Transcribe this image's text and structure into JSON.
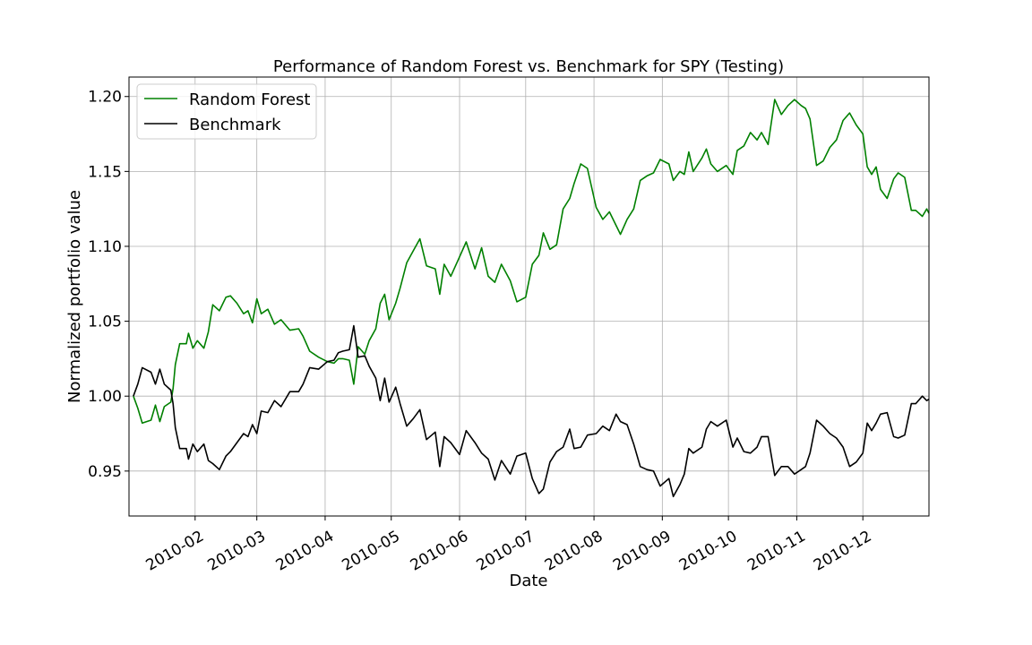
{
  "chart_data": {
    "type": "line",
    "title": "Performance of Random Forest vs. Benchmark for SPY (Testing)",
    "xlabel": "Date",
    "ylabel": "Normalized portfolio value",
    "xlim": [
      "2010-01-02",
      "2010-12-31"
    ],
    "ylim": [
      0.92,
      1.213
    ],
    "grid": true,
    "legend_position": "upper left",
    "x_ticks": [
      "2010-02-01",
      "2010-03-01",
      "2010-04-01",
      "2010-05-01",
      "2010-06-01",
      "2010-07-01",
      "2010-08-01",
      "2010-09-01",
      "2010-10-01",
      "2010-11-01",
      "2010-12-01"
    ],
    "x_tick_labels": [
      "2010-02",
      "2010-03",
      "2010-04",
      "2010-05",
      "2010-06",
      "2010-07",
      "2010-08",
      "2010-09",
      "2010-10",
      "2010-11",
      "2010-12"
    ],
    "y_ticks": [
      0.95,
      1.0,
      1.05,
      1.1,
      1.15,
      1.2
    ],
    "y_tick_labels": [
      "0.95",
      "1.00",
      "1.05",
      "1.10",
      "1.15",
      "1.20"
    ],
    "series": [
      {
        "name": "Random Forest",
        "color": "#008000",
        "points": [
          [
            "2010-01-04",
            1.0
          ],
          [
            "2010-01-06",
            0.992
          ],
          [
            "2010-01-08",
            0.982
          ],
          [
            "2010-01-12",
            0.984
          ],
          [
            "2010-01-14",
            0.994
          ],
          [
            "2010-01-16",
            0.983
          ],
          [
            "2010-01-18",
            0.993
          ],
          [
            "2010-01-21",
            0.996
          ],
          [
            "2010-01-22",
            1.005
          ],
          [
            "2010-01-23",
            1.021
          ],
          [
            "2010-01-25",
            1.035
          ],
          [
            "2010-01-28",
            1.035
          ],
          [
            "2010-01-29",
            1.042
          ],
          [
            "2010-01-31",
            1.032
          ],
          [
            "2010-02-02",
            1.037
          ],
          [
            "2010-02-05",
            1.032
          ],
          [
            "2010-02-07",
            1.043
          ],
          [
            "2010-02-09",
            1.061
          ],
          [
            "2010-02-12",
            1.057
          ],
          [
            "2010-02-15",
            1.066
          ],
          [
            "2010-02-17",
            1.067
          ],
          [
            "2010-02-20",
            1.062
          ],
          [
            "2010-02-23",
            1.055
          ],
          [
            "2010-02-25",
            1.057
          ],
          [
            "2010-02-27",
            1.049
          ],
          [
            "2010-03-01",
            1.065
          ],
          [
            "2010-03-03",
            1.055
          ],
          [
            "2010-03-06",
            1.058
          ],
          [
            "2010-03-09",
            1.048
          ],
          [
            "2010-03-12",
            1.051
          ],
          [
            "2010-03-16",
            1.044
          ],
          [
            "2010-03-20",
            1.045
          ],
          [
            "2010-03-22",
            1.04
          ],
          [
            "2010-03-25",
            1.03
          ],
          [
            "2010-03-29",
            1.026
          ],
          [
            "2010-04-02",
            1.023
          ],
          [
            "2010-04-05",
            1.022
          ],
          [
            "2010-04-07",
            1.025
          ],
          [
            "2010-04-09",
            1.025
          ],
          [
            "2010-04-12",
            1.024
          ],
          [
            "2010-04-14",
            1.008
          ],
          [
            "2010-04-16",
            1.033
          ],
          [
            "2010-04-19",
            1.028
          ],
          [
            "2010-04-21",
            1.037
          ],
          [
            "2010-04-24",
            1.045
          ],
          [
            "2010-04-26",
            1.062
          ],
          [
            "2010-04-28",
            1.068
          ],
          [
            "2010-04-30",
            1.051
          ],
          [
            "2010-05-03",
            1.062
          ],
          [
            "2010-05-05",
            1.072
          ],
          [
            "2010-05-08",
            1.089
          ],
          [
            "2010-05-11",
            1.097
          ],
          [
            "2010-05-14",
            1.105
          ],
          [
            "2010-05-17",
            1.087
          ],
          [
            "2010-05-21",
            1.085
          ],
          [
            "2010-05-23",
            1.068
          ],
          [
            "2010-05-25",
            1.088
          ],
          [
            "2010-05-28",
            1.08
          ],
          [
            "2010-06-01",
            1.093
          ],
          [
            "2010-06-04",
            1.103
          ],
          [
            "2010-06-08",
            1.085
          ],
          [
            "2010-06-11",
            1.099
          ],
          [
            "2010-06-14",
            1.08
          ],
          [
            "2010-06-17",
            1.076
          ],
          [
            "2010-06-20",
            1.088
          ],
          [
            "2010-06-24",
            1.077
          ],
          [
            "2010-06-27",
            1.063
          ],
          [
            "2010-07-01",
            1.066
          ],
          [
            "2010-07-04",
            1.088
          ],
          [
            "2010-07-07",
            1.094
          ],
          [
            "2010-07-09",
            1.109
          ],
          [
            "2010-07-12",
            1.098
          ],
          [
            "2010-07-15",
            1.101
          ],
          [
            "2010-07-18",
            1.125
          ],
          [
            "2010-07-21",
            1.132
          ],
          [
            "2010-07-23",
            1.142
          ],
          [
            "2010-07-26",
            1.155
          ],
          [
            "2010-07-29",
            1.152
          ],
          [
            "2010-08-02",
            1.126
          ],
          [
            "2010-08-05",
            1.118
          ],
          [
            "2010-08-08",
            1.123
          ],
          [
            "2010-08-11",
            1.114
          ],
          [
            "2010-08-13",
            1.108
          ],
          [
            "2010-08-16",
            1.118
          ],
          [
            "2010-08-19",
            1.125
          ],
          [
            "2010-08-22",
            1.144
          ],
          [
            "2010-08-25",
            1.147
          ],
          [
            "2010-08-28",
            1.149
          ],
          [
            "2010-08-31",
            1.158
          ],
          [
            "2010-09-04",
            1.155
          ],
          [
            "2010-09-06",
            1.144
          ],
          [
            "2010-09-09",
            1.15
          ],
          [
            "2010-09-11",
            1.148
          ],
          [
            "2010-09-13",
            1.163
          ],
          [
            "2010-09-15",
            1.15
          ],
          [
            "2010-09-19",
            1.159
          ],
          [
            "2010-09-21",
            1.165
          ],
          [
            "2010-09-23",
            1.155
          ],
          [
            "2010-09-26",
            1.15
          ],
          [
            "2010-09-30",
            1.154
          ],
          [
            "2010-10-03",
            1.148
          ],
          [
            "2010-10-05",
            1.164
          ],
          [
            "2010-10-08",
            1.167
          ],
          [
            "2010-10-11",
            1.176
          ],
          [
            "2010-10-14",
            1.171
          ],
          [
            "2010-10-16",
            1.176
          ],
          [
            "2010-10-19",
            1.168
          ],
          [
            "2010-10-22",
            1.198
          ],
          [
            "2010-10-25",
            1.188
          ],
          [
            "2010-10-28",
            1.194
          ],
          [
            "2010-10-31",
            1.198
          ],
          [
            "2010-11-03",
            1.194
          ],
          [
            "2010-11-05",
            1.192
          ],
          [
            "2010-11-07",
            1.185
          ],
          [
            "2010-11-10",
            1.154
          ],
          [
            "2010-11-13",
            1.157
          ],
          [
            "2010-11-16",
            1.166
          ],
          [
            "2010-11-19",
            1.171
          ],
          [
            "2010-11-22",
            1.184
          ],
          [
            "2010-11-25",
            1.189
          ],
          [
            "2010-11-28",
            1.181
          ],
          [
            "2010-12-01",
            1.175
          ],
          [
            "2010-12-03",
            1.153
          ],
          [
            "2010-12-05",
            1.148
          ],
          [
            "2010-12-07",
            1.153
          ],
          [
            "2010-12-09",
            1.138
          ],
          [
            "2010-12-12",
            1.132
          ],
          [
            "2010-12-15",
            1.145
          ],
          [
            "2010-12-17",
            1.149
          ],
          [
            "2010-12-20",
            1.146
          ],
          [
            "2010-12-23",
            1.124
          ],
          [
            "2010-12-25",
            1.124
          ],
          [
            "2010-12-28",
            1.12
          ],
          [
            "2010-12-30",
            1.125
          ],
          [
            "2010-12-31",
            1.122
          ]
        ]
      },
      {
        "name": "Benchmark",
        "color": "#000000",
        "points": [
          [
            "2010-01-04",
            1.0
          ],
          [
            "2010-01-06",
            1.008
          ],
          [
            "2010-01-08",
            1.019
          ],
          [
            "2010-01-12",
            1.016
          ],
          [
            "2010-01-14",
            1.008
          ],
          [
            "2010-01-16",
            1.018
          ],
          [
            "2010-01-18",
            1.008
          ],
          [
            "2010-01-21",
            1.004
          ],
          [
            "2010-01-22",
            0.995
          ],
          [
            "2010-01-23",
            0.979
          ],
          [
            "2010-01-25",
            0.965
          ],
          [
            "2010-01-28",
            0.965
          ],
          [
            "2010-01-29",
            0.958
          ],
          [
            "2010-01-31",
            0.968
          ],
          [
            "2010-02-02",
            0.963
          ],
          [
            "2010-02-05",
            0.968
          ],
          [
            "2010-02-07",
            0.957
          ],
          [
            "2010-02-09",
            0.955
          ],
          [
            "2010-02-12",
            0.951
          ],
          [
            "2010-02-15",
            0.96
          ],
          [
            "2010-02-17",
            0.963
          ],
          [
            "2010-02-20",
            0.969
          ],
          [
            "2010-02-23",
            0.975
          ],
          [
            "2010-02-25",
            0.973
          ],
          [
            "2010-02-27",
            0.981
          ],
          [
            "2010-03-01",
            0.975
          ],
          [
            "2010-03-03",
            0.99
          ],
          [
            "2010-03-06",
            0.989
          ],
          [
            "2010-03-09",
            0.997
          ],
          [
            "2010-03-12",
            0.993
          ],
          [
            "2010-03-16",
            1.003
          ],
          [
            "2010-03-20",
            1.003
          ],
          [
            "2010-03-22",
            1.008
          ],
          [
            "2010-03-25",
            1.019
          ],
          [
            "2010-03-29",
            1.018
          ],
          [
            "2010-04-02",
            1.023
          ],
          [
            "2010-04-05",
            1.024
          ],
          [
            "2010-04-07",
            1.029
          ],
          [
            "2010-04-09",
            1.03
          ],
          [
            "2010-04-12",
            1.031
          ],
          [
            "2010-04-14",
            1.047
          ],
          [
            "2010-04-16",
            1.026
          ],
          [
            "2010-04-19",
            1.027
          ],
          [
            "2010-04-21",
            1.02
          ],
          [
            "2010-04-24",
            1.012
          ],
          [
            "2010-04-26",
            0.997
          ],
          [
            "2010-04-28",
            1.012
          ],
          [
            "2010-04-30",
            0.996
          ],
          [
            "2010-05-03",
            1.006
          ],
          [
            "2010-05-05",
            0.995
          ],
          [
            "2010-05-08",
            0.98
          ],
          [
            "2010-05-11",
            0.985
          ],
          [
            "2010-05-14",
            0.991
          ],
          [
            "2010-05-17",
            0.971
          ],
          [
            "2010-05-21",
            0.976
          ],
          [
            "2010-05-23",
            0.953
          ],
          [
            "2010-05-25",
            0.973
          ],
          [
            "2010-05-28",
            0.969
          ],
          [
            "2010-06-01",
            0.961
          ],
          [
            "2010-06-04",
            0.977
          ],
          [
            "2010-06-08",
            0.969
          ],
          [
            "2010-06-11",
            0.962
          ],
          [
            "2010-06-14",
            0.958
          ],
          [
            "2010-06-17",
            0.944
          ],
          [
            "2010-06-20",
            0.957
          ],
          [
            "2010-06-24",
            0.948
          ],
          [
            "2010-06-27",
            0.96
          ],
          [
            "2010-07-01",
            0.962
          ],
          [
            "2010-07-04",
            0.945
          ],
          [
            "2010-07-07",
            0.935
          ],
          [
            "2010-07-09",
            0.938
          ],
          [
            "2010-07-12",
            0.956
          ],
          [
            "2010-07-15",
            0.963
          ],
          [
            "2010-07-18",
            0.966
          ],
          [
            "2010-07-21",
            0.978
          ],
          [
            "2010-07-23",
            0.965
          ],
          [
            "2010-07-26",
            0.966
          ],
          [
            "2010-07-29",
            0.974
          ],
          [
            "2010-08-02",
            0.975
          ],
          [
            "2010-08-05",
            0.98
          ],
          [
            "2010-08-08",
            0.977
          ],
          [
            "2010-08-11",
            0.988
          ],
          [
            "2010-08-13",
            0.983
          ],
          [
            "2010-08-16",
            0.981
          ],
          [
            "2010-08-19",
            0.968
          ],
          [
            "2010-08-22",
            0.953
          ],
          [
            "2010-08-25",
            0.951
          ],
          [
            "2010-08-28",
            0.95
          ],
          [
            "2010-08-31",
            0.94
          ],
          [
            "2010-09-04",
            0.945
          ],
          [
            "2010-09-06",
            0.933
          ],
          [
            "2010-09-09",
            0.941
          ],
          [
            "2010-09-11",
            0.948
          ],
          [
            "2010-09-13",
            0.965
          ],
          [
            "2010-09-15",
            0.962
          ],
          [
            "2010-09-19",
            0.966
          ],
          [
            "2010-09-21",
            0.978
          ],
          [
            "2010-09-23",
            0.983
          ],
          [
            "2010-09-26",
            0.98
          ],
          [
            "2010-09-30",
            0.984
          ],
          [
            "2010-10-03",
            0.966
          ],
          [
            "2010-10-05",
            0.972
          ],
          [
            "2010-10-08",
            0.963
          ],
          [
            "2010-10-11",
            0.962
          ],
          [
            "2010-10-14",
            0.966
          ],
          [
            "2010-10-16",
            0.973
          ],
          [
            "2010-10-19",
            0.973
          ],
          [
            "2010-10-22",
            0.947
          ],
          [
            "2010-10-25",
            0.953
          ],
          [
            "2010-10-28",
            0.953
          ],
          [
            "2010-10-31",
            0.948
          ],
          [
            "2010-11-03",
            0.951
          ],
          [
            "2010-11-05",
            0.953
          ],
          [
            "2010-11-07",
            0.962
          ],
          [
            "2010-11-10",
            0.984
          ],
          [
            "2010-11-13",
            0.98
          ],
          [
            "2010-11-16",
            0.975
          ],
          [
            "2010-11-19",
            0.972
          ],
          [
            "2010-11-22",
            0.966
          ],
          [
            "2010-11-25",
            0.953
          ],
          [
            "2010-11-28",
            0.956
          ],
          [
            "2010-12-01",
            0.962
          ],
          [
            "2010-12-03",
            0.982
          ],
          [
            "2010-12-05",
            0.977
          ],
          [
            "2010-12-07",
            0.982
          ],
          [
            "2010-12-09",
            0.988
          ],
          [
            "2010-12-12",
            0.989
          ],
          [
            "2010-12-15",
            0.973
          ],
          [
            "2010-12-17",
            0.972
          ],
          [
            "2010-12-20",
            0.974
          ],
          [
            "2010-12-23",
            0.995
          ],
          [
            "2010-12-25",
            0.995
          ],
          [
            "2010-12-28",
            1.0
          ],
          [
            "2010-12-30",
            0.997
          ],
          [
            "2010-12-31",
            0.998
          ]
        ]
      }
    ]
  }
}
